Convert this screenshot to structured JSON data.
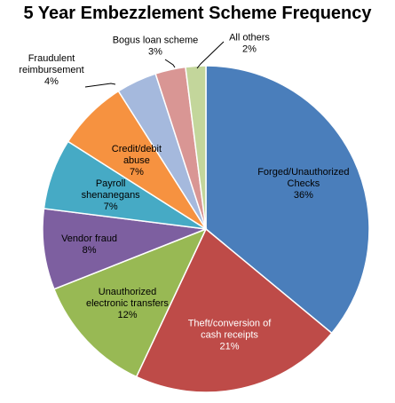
{
  "chart_data": {
    "type": "pie",
    "title": "5 Year Embezzlement Scheme Frequency",
    "start_angle_deg": 0,
    "direction": "clockwise",
    "slices": [
      {
        "label": [
          "Forged/Unauthorized",
          "Checks"
        ],
        "value": 36,
        "value_label": "36%",
        "color": "#4a7ebb",
        "label_color": "#000000",
        "label_inside": true
      },
      {
        "label": [
          "Theft/conversion of",
          "cash receipts"
        ],
        "value": 21,
        "value_label": "21%",
        "color": "#be4b48",
        "label_color": "#ffffff",
        "label_inside": true
      },
      {
        "label": [
          "Unauthorized",
          "electronic transfers"
        ],
        "value": 12,
        "value_label": "12%",
        "color": "#98b954",
        "label_color": "#000000",
        "label_inside": true
      },
      {
        "label": [
          "Vendor fraud"
        ],
        "value": 8,
        "value_label": "8%",
        "color": "#7d5fa0",
        "label_color": "#000000",
        "label_inside": true
      },
      {
        "label": [
          "Payroll",
          "shenanegans"
        ],
        "value": 7,
        "value_label": "7%",
        "color": "#46aac5",
        "label_color": "#000000",
        "label_inside": true
      },
      {
        "label": [
          "Credit/debit",
          "abuse"
        ],
        "value": 7,
        "value_label": "7%",
        "color": "#f69240",
        "label_color": "#000000",
        "label_inside": true
      },
      {
        "label": [
          "Fraudulent",
          "reimbursement"
        ],
        "value": 4,
        "value_label": "4%",
        "color": "#a5b9dd",
        "label_color": "#000000",
        "label_inside": false
      },
      {
        "label": [
          "Bogus loan scheme"
        ],
        "value": 3,
        "value_label": "3%",
        "color": "#d99694",
        "label_color": "#000000",
        "label_inside": false
      },
      {
        "label": [
          "All others"
        ],
        "value": 2,
        "value_label": "2%",
        "color": "#c3d69b",
        "label_color": "#000000",
        "label_inside": false
      }
    ]
  }
}
